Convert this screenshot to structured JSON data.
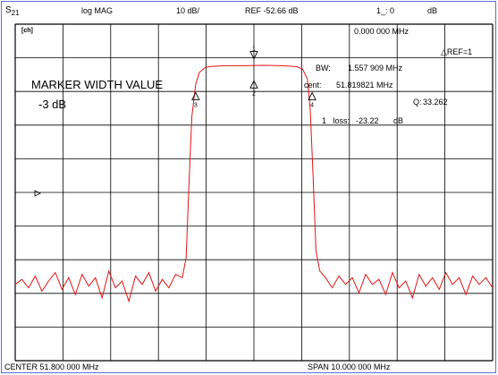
{
  "header": {
    "channel_s": "S",
    "channel_sub": "21",
    "format": "log MAG",
    "scale": "10 dB/",
    "ref": "REF -52.66 dB",
    "marker_readout": "1_: 0",
    "marker_unit": "dB"
  },
  "panel": {
    "ch_icon": "[ch]",
    "marker_freq": "0.000 000 MHz",
    "ref_tag": "△REF=1",
    "bw_label": "BW:",
    "bw_value": "1.557 909 MHz",
    "cent_label": "cent:",
    "cent_value": "51.819821 MHz",
    "q_label": "Q:",
    "q_value": "33.262",
    "loss_label": "1_ loss:",
    "loss_value": "-23.22",
    "loss_unit": "dB"
  },
  "annotation": {
    "title": "MARKER WIDTH VALUE",
    "value": "-3 dB"
  },
  "footer": {
    "center": "CENTER  51.800 000 MHz",
    "span": "SPAN  10.000 000 MHz"
  },
  "colors": {
    "trace": "#e01414",
    "grid": "#000000",
    "frame": "#5b6fd6",
    "background": "#ffffff"
  },
  "chart_data": {
    "type": "line",
    "title": "",
    "xlabel": "",
    "ylabel": "",
    "x_range_mhz": [
      46.8,
      56.8
    ],
    "y_range_db": [
      -152.66,
      -52.66
    ],
    "grid": true,
    "divisions": {
      "x": 10,
      "y": 10
    },
    "series": [
      {
        "points": [
          [
            46.8,
            -130
          ],
          [
            46.94,
            -128.5
          ],
          [
            47.08,
            -131
          ],
          [
            47.22,
            -127.5
          ],
          [
            47.36,
            -132
          ],
          [
            47.5,
            -129
          ],
          [
            47.64,
            -126.5
          ],
          [
            47.78,
            -131.5
          ],
          [
            47.92,
            -128
          ],
          [
            48.06,
            -133
          ],
          [
            48.2,
            -127
          ],
          [
            48.34,
            -130.5
          ],
          [
            48.48,
            -128
          ],
          [
            48.62,
            -134
          ],
          [
            48.76,
            -126
          ],
          [
            48.9,
            -131
          ],
          [
            49.04,
            -129
          ],
          [
            49.18,
            -135
          ],
          [
            49.32,
            -127.5
          ],
          [
            49.46,
            -130
          ],
          [
            49.6,
            -126.5
          ],
          [
            49.74,
            -132
          ],
          [
            49.88,
            -128.5
          ],
          [
            50.02,
            -131
          ],
          [
            50.16,
            -127
          ],
          [
            50.3,
            -128
          ],
          [
            50.38,
            -122
          ],
          [
            50.44,
            -100
          ],
          [
            50.5,
            -80
          ],
          [
            50.58,
            -70.5
          ],
          [
            50.66,
            -67
          ],
          [
            50.78,
            -65.5
          ],
          [
            50.9,
            -65.2
          ],
          [
            51.2,
            -65.0
          ],
          [
            51.6,
            -65.0
          ],
          [
            52.0,
            -64.9
          ],
          [
            52.4,
            -65.0
          ],
          [
            52.7,
            -65.3
          ],
          [
            52.82,
            -66
          ],
          [
            52.92,
            -69
          ],
          [
            52.98,
            -78
          ],
          [
            53.04,
            -98
          ],
          [
            53.1,
            -120
          ],
          [
            53.18,
            -126
          ],
          [
            53.3,
            -128
          ],
          [
            53.44,
            -131
          ],
          [
            53.58,
            -127.5
          ],
          [
            53.72,
            -130
          ],
          [
            53.86,
            -128
          ],
          [
            54.0,
            -132.5
          ],
          [
            54.14,
            -127
          ],
          [
            54.28,
            -130
          ],
          [
            54.42,
            -128.5
          ],
          [
            54.56,
            -133
          ],
          [
            54.7,
            -126.5
          ],
          [
            54.84,
            -131
          ],
          [
            54.98,
            -129
          ],
          [
            55.12,
            -134
          ],
          [
            55.26,
            -127
          ],
          [
            55.4,
            -130.5
          ],
          [
            55.54,
            -128
          ],
          [
            55.68,
            -131.5
          ],
          [
            55.82,
            -126.5
          ],
          [
            55.96,
            -130
          ],
          [
            56.1,
            -128
          ],
          [
            56.24,
            -133
          ],
          [
            56.38,
            -127.5
          ],
          [
            56.52,
            -130
          ],
          [
            56.66,
            -128
          ],
          [
            56.8,
            -131
          ]
        ]
      }
    ],
    "markers": [
      {
        "label": "1",
        "x": 51.8,
        "y": -60.8,
        "type": "ref"
      },
      {
        "label": "2",
        "x": 51.8,
        "y": -69.5
      },
      {
        "label": "3",
        "x": 50.58,
        "y": -73.0
      },
      {
        "label": "4",
        "x": 53.02,
        "y": -73.0
      }
    ]
  }
}
